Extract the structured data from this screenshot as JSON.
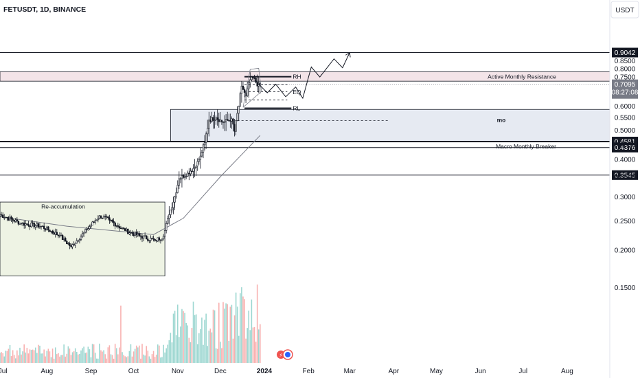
{
  "header": {
    "symbol_line": "FETUSDT, 1D, BINANCE"
  },
  "currency_button": "USDT",
  "countdown": "08:27:08",
  "colors": {
    "up": "#26a69a",
    "down": "#ef5350",
    "candle": "#131722",
    "resistance_zone": "#f3e4e8",
    "support_zone": "#e6eaf2",
    "reaccum_zone": "#eef3e4",
    "last_price_bg": "#787b86"
  },
  "chart_data": {
    "type": "candlestick",
    "title": "FETUSDT, 1D, BINANCE",
    "x_range": [
      "2023-06-29",
      "2024-08-31"
    ],
    "x_ticks": [
      {
        "date": "2023-07-01",
        "label": "Jul"
      },
      {
        "date": "2023-08-01",
        "label": "Aug"
      },
      {
        "date": "2023-09-01",
        "label": "Sep"
      },
      {
        "date": "2023-10-01",
        "label": "Oct"
      },
      {
        "date": "2023-11-01",
        "label": "Nov"
      },
      {
        "date": "2023-12-01",
        "label": "Dec"
      },
      {
        "date": "2024-01-01",
        "label": "2024"
      },
      {
        "date": "2024-02-01",
        "label": "Feb"
      },
      {
        "date": "2024-03-01",
        "label": "Mar"
      },
      {
        "date": "2024-04-01",
        "label": "Apr"
      },
      {
        "date": "2024-05-01",
        "label": "May"
      },
      {
        "date": "2024-06-01",
        "label": "Jun"
      },
      {
        "date": "2024-07-01",
        "label": "Jul"
      },
      {
        "date": "2024-08-01",
        "label": "Aug"
      }
    ],
    "y_ticks": [
      "0.8500",
      "0.8000",
      "0.7500",
      "0.7000",
      "0.6500",
      "0.6000",
      "0.5500",
      "0.5000",
      "0.4500",
      "0.4000",
      "0.3500",
      "0.3000",
      "0.2500",
      "0.2000",
      "0.1500"
    ],
    "y_range": [
      0.1,
      0.93
    ],
    "last_price": "0.7095",
    "key_levels": [
      "0.9042",
      "0.4581",
      "0.4376",
      "0.3545"
    ],
    "zones": [
      {
        "label": "Active Monthly Resistance",
        "from": 0.7265,
        "to": 0.781,
        "start": "2023-06-29"
      },
      {
        "label": "mo",
        "from": 0.4581,
        "to": 0.5855,
        "start": "2023-10-27"
      },
      {
        "label": "Re-accumulation",
        "from": 0.164,
        "to": 0.2885,
        "start": "2023-06-29",
        "end": "2023-10-23"
      }
    ],
    "annotations": [
      "RH",
      "EQ",
      "RL",
      "Macro Monthly Breaker"
    ],
    "anchors": [
      {
        "date": "2023-06-29",
        "close": 0.262
      },
      {
        "date": "2023-07-14",
        "close": 0.245
      },
      {
        "date": "2023-07-28",
        "close": 0.24
      },
      {
        "date": "2023-08-10",
        "close": 0.223
      },
      {
        "date": "2023-08-18",
        "close": 0.205
      },
      {
        "date": "2023-08-29",
        "close": 0.233
      },
      {
        "date": "2023-09-07",
        "close": 0.26
      },
      {
        "date": "2023-09-14",
        "close": 0.251
      },
      {
        "date": "2023-09-25",
        "close": 0.232
      },
      {
        "date": "2023-10-05",
        "close": 0.223
      },
      {
        "date": "2023-10-16",
        "close": 0.215
      },
      {
        "date": "2023-10-22",
        "close": 0.222
      },
      {
        "date": "2023-10-26",
        "close": 0.262
      },
      {
        "date": "2023-10-30",
        "close": 0.3
      },
      {
        "date": "2023-11-02",
        "close": 0.345
      },
      {
        "date": "2023-11-08",
        "close": 0.36
      },
      {
        "date": "2023-11-14",
        "close": 0.38
      },
      {
        "date": "2023-11-17",
        "close": 0.41
      },
      {
        "date": "2023-11-20",
        "close": 0.455
      },
      {
        "date": "2023-11-23",
        "close": 0.54
      },
      {
        "date": "2023-11-28",
        "close": 0.55
      },
      {
        "date": "2023-12-03",
        "close": 0.53
      },
      {
        "date": "2023-12-09",
        "close": 0.545
      },
      {
        "date": "2023-12-11",
        "close": 0.495
      },
      {
        "date": "2023-12-14",
        "close": 0.6
      },
      {
        "date": "2023-12-16",
        "close": 0.7
      },
      {
        "date": "2023-12-19",
        "close": 0.65
      },
      {
        "date": "2023-12-22",
        "close": 0.735
      },
      {
        "date": "2023-12-25",
        "close": 0.745
      },
      {
        "date": "2023-12-27",
        "close": 0.7
      },
      {
        "date": "2023-12-29",
        "close": 0.7095
      }
    ],
    "moving_average": [
      {
        "date": "2023-06-29",
        "value": 0.258
      },
      {
        "date": "2023-08-15",
        "value": 0.24
      },
      {
        "date": "2023-10-15",
        "value": 0.225
      },
      {
        "date": "2023-11-05",
        "value": 0.255
      },
      {
        "date": "2023-12-01",
        "value": 0.35
      },
      {
        "date": "2023-12-29",
        "value": 0.48
      }
    ],
    "projection": [
      {
        "date": "2023-12-25",
        "value": 0.735
      },
      {
        "date": "2024-01-03",
        "value": 0.665
      },
      {
        "date": "2024-01-09",
        "value": 0.71
      },
      {
        "date": "2024-01-16",
        "value": 0.645
      },
      {
        "date": "2024-01-23",
        "value": 0.695
      },
      {
        "date": "2024-01-28",
        "value": 0.638
      },
      {
        "date": "2024-02-03",
        "value": 0.81
      },
      {
        "date": "2024-02-09",
        "value": 0.75
      },
      {
        "date": "2024-02-19",
        "value": 0.862
      },
      {
        "date": "2024-02-25",
        "value": 0.805
      },
      {
        "date": "2024-03-01",
        "value": 0.9042
      }
    ]
  }
}
